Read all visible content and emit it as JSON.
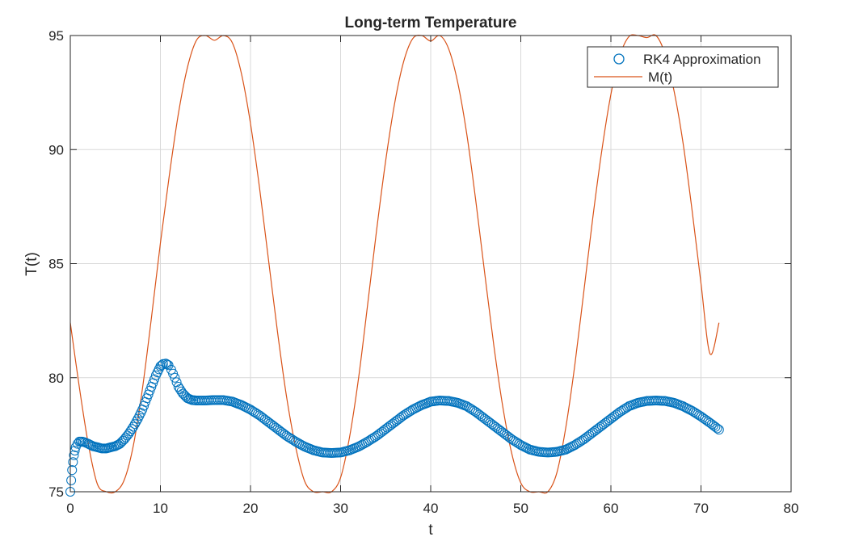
{
  "colors": {
    "rk4": "#0072BD",
    "m": "#D95319",
    "grid": "#d9d9d9",
    "axis": "#262626",
    "background": "#ffffff"
  },
  "chart_data": {
    "type": "line",
    "title": "Long-term Temperature",
    "xlabel": "t",
    "ylabel": "T(t)",
    "xlim": [
      0,
      80
    ],
    "ylim": [
      75,
      95
    ],
    "xticks": [
      "0",
      "10",
      "20",
      "30",
      "40",
      "50",
      "60",
      "70",
      "80"
    ],
    "yticks": [
      "75",
      "80",
      "85",
      "90",
      "95"
    ],
    "grid": true,
    "legend_position": "top-right",
    "series": [
      {
        "name": "RK4 Approximation",
        "style": "circles",
        "color": "#0072BD",
        "x": [
          0,
          0.1,
          0.2,
          0.3,
          0.4,
          0.5,
          0.6,
          0.8,
          1.0,
          1.3,
          1.6,
          2.0,
          2.5,
          3.0,
          3.5,
          4.0,
          4.5,
          5.0,
          5.5,
          6.0,
          6.5,
          7.0,
          7.5,
          8.0,
          8.5,
          9.0,
          9.5,
          10.0,
          10.3,
          10.6,
          10.9,
          11.2,
          11.6,
          12.0,
          12.5,
          13.0,
          13.5,
          14.0,
          15.0,
          16.0,
          17.0,
          18.0,
          19.0,
          20.0,
          21.0,
          22.0,
          23.0,
          24.0,
          25.0,
          26.0,
          27.0,
          28.0,
          29.0,
          30.0,
          31.0,
          32.0,
          33.0,
          34.0,
          35.0,
          36.0,
          37.0,
          38.0,
          39.0,
          40.0,
          41.0,
          42.0,
          43.0,
          44.0,
          45.0,
          46.0,
          47.0,
          48.0,
          49.0,
          50.0,
          51.0,
          52.0,
          53.0,
          54.0,
          55.0,
          56.0,
          57.0,
          58.0,
          59.0,
          60.0,
          61.0,
          62.0,
          63.0,
          64.0,
          65.0,
          66.0,
          67.0,
          68.0,
          69.0,
          70.0,
          71.0,
          72.0
        ],
        "y": [
          75.0,
          75.5,
          75.95,
          76.3,
          76.6,
          76.8,
          76.95,
          77.1,
          77.2,
          77.2,
          77.17,
          77.1,
          77.0,
          76.95,
          76.9,
          76.9,
          76.95,
          77.0,
          77.1,
          77.3,
          77.55,
          77.85,
          78.2,
          78.6,
          79.1,
          79.6,
          80.1,
          80.5,
          80.6,
          80.62,
          80.55,
          80.35,
          80.0,
          79.6,
          79.3,
          79.1,
          79.02,
          79.0,
          79.0,
          79.02,
          79.02,
          78.95,
          78.8,
          78.6,
          78.35,
          78.05,
          77.75,
          77.45,
          77.2,
          76.98,
          76.82,
          76.72,
          76.7,
          76.72,
          76.82,
          76.98,
          77.2,
          77.45,
          77.75,
          78.05,
          78.35,
          78.6,
          78.8,
          78.95,
          79.0,
          78.98,
          78.9,
          78.75,
          78.5,
          78.2,
          77.9,
          77.6,
          77.3,
          77.05,
          76.85,
          76.75,
          76.72,
          76.75,
          76.85,
          77.05,
          77.3,
          77.6,
          77.9,
          78.2,
          78.5,
          78.75,
          78.9,
          78.98,
          79.0,
          78.98,
          78.9,
          78.75,
          78.55,
          78.3,
          78.02,
          77.72
        ]
      },
      {
        "name": "M(t)",
        "style": "line",
        "color": "#D95319",
        "x": [
          0,
          1,
          2,
          3,
          4,
          5,
          6,
          7,
          8,
          9,
          10,
          11,
          12,
          13,
          14,
          15,
          16,
          17,
          18,
          19,
          20,
          21,
          22,
          23,
          24,
          25,
          26,
          27,
          28,
          29,
          30,
          31,
          32,
          33,
          34,
          35,
          36,
          37,
          38,
          39,
          40,
          41,
          42,
          43,
          44,
          45,
          46,
          47,
          48,
          49,
          50,
          51,
          52,
          53,
          54,
          55,
          56,
          57,
          58,
          59,
          60,
          61,
          62,
          63,
          64,
          65,
          66,
          67,
          68,
          69,
          70,
          71,
          72
        ],
        "y": [
          82.41,
          79.59,
          77.09,
          75.34,
          75.0,
          75.0,
          75.53,
          77.03,
          79.5,
          82.61,
          85.9,
          88.9,
          91.58,
          93.6,
          94.79,
          95.0,
          94.79,
          95.0,
          94.67,
          93.32,
          91.14,
          88.33,
          85.16,
          82.0,
          79.17,
          76.98,
          75.47,
          75.0,
          75.0,
          75.0,
          75.62,
          77.41,
          80.0,
          83.2,
          86.48,
          89.5,
          92.03,
          93.86,
          94.86,
          95.0,
          94.76,
          95.0,
          94.41,
          92.94,
          90.69,
          87.77,
          84.56,
          81.43,
          78.73,
          76.67,
          75.39,
          75.0,
          75.0,
          75.0,
          75.83,
          77.83,
          80.57,
          83.79,
          87.04,
          89.98,
          92.42,
          94.11,
          94.95,
          95.0,
          94.91,
          95.0,
          94.2,
          92.59,
          90.31,
          87.37,
          84.13,
          81.05,
          82.41
        ]
      }
    ]
  }
}
